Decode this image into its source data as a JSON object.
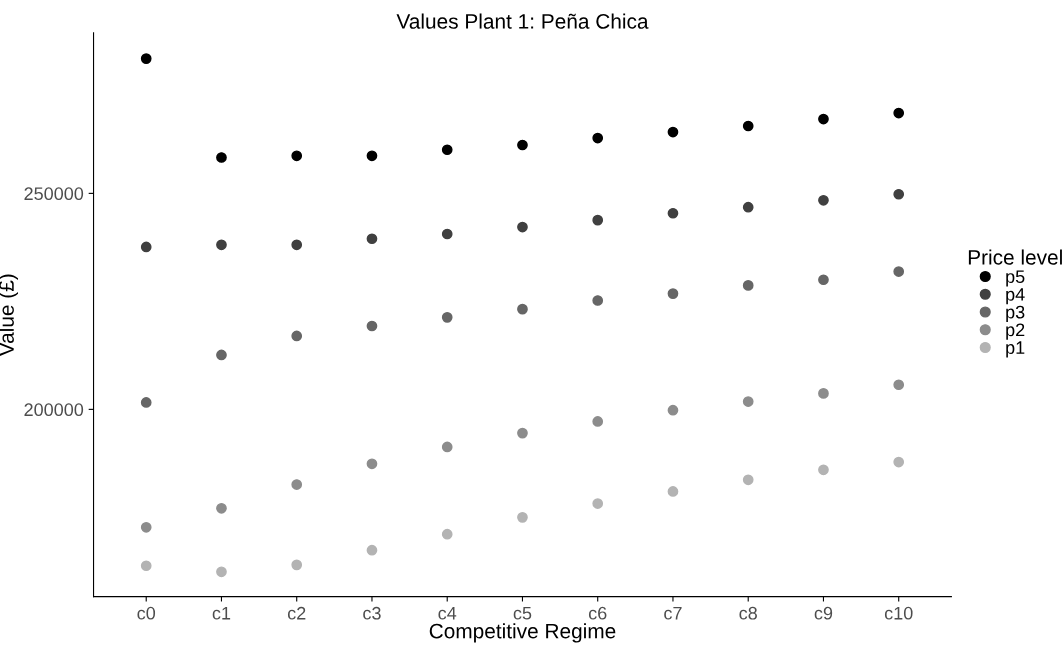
{
  "chart_data": {
    "type": "scatter",
    "title": "Values Plant 1: Peña Chica",
    "xlabel": "Competitive Regime",
    "ylabel": "Value (£)",
    "legend_title": "Price level",
    "categories": [
      "c0",
      "c1",
      "c2",
      "c3",
      "c4",
      "c5",
      "c6",
      "c7",
      "c8",
      "c9",
      "c10"
    ],
    "series": [
      {
        "name": "p5",
        "color": "#000000",
        "values": [
          281200,
          258300,
          258700,
          258700,
          260100,
          261200,
          262800,
          264200,
          265600,
          267200,
          268600
        ]
      },
      {
        "name": "p4",
        "color": "#404040",
        "values": [
          237600,
          238100,
          238100,
          239500,
          240600,
          242200,
          243800,
          245400,
          246800,
          248400,
          249800
        ]
      },
      {
        "name": "p3",
        "color": "#666666",
        "values": [
          201600,
          212600,
          217000,
          219300,
          221300,
          223200,
          225200,
          226800,
          228700,
          230000,
          231900
        ]
      },
      {
        "name": "p2",
        "color": "#8c8c8c",
        "values": [
          172700,
          177100,
          182600,
          187400,
          191300,
          194500,
          197200,
          199800,
          201800,
          203700,
          205700
        ]
      },
      {
        "name": "p1",
        "color": "#b3b3b3",
        "values": [
          163800,
          162400,
          164000,
          167400,
          171100,
          175000,
          178200,
          181000,
          183700,
          186000,
          187800
        ]
      }
    ],
    "ylim": [
      156650,
      287150
    ],
    "yticks": [
      200000,
      250000
    ],
    "grid": false,
    "legend": "right",
    "marker": "circle"
  }
}
